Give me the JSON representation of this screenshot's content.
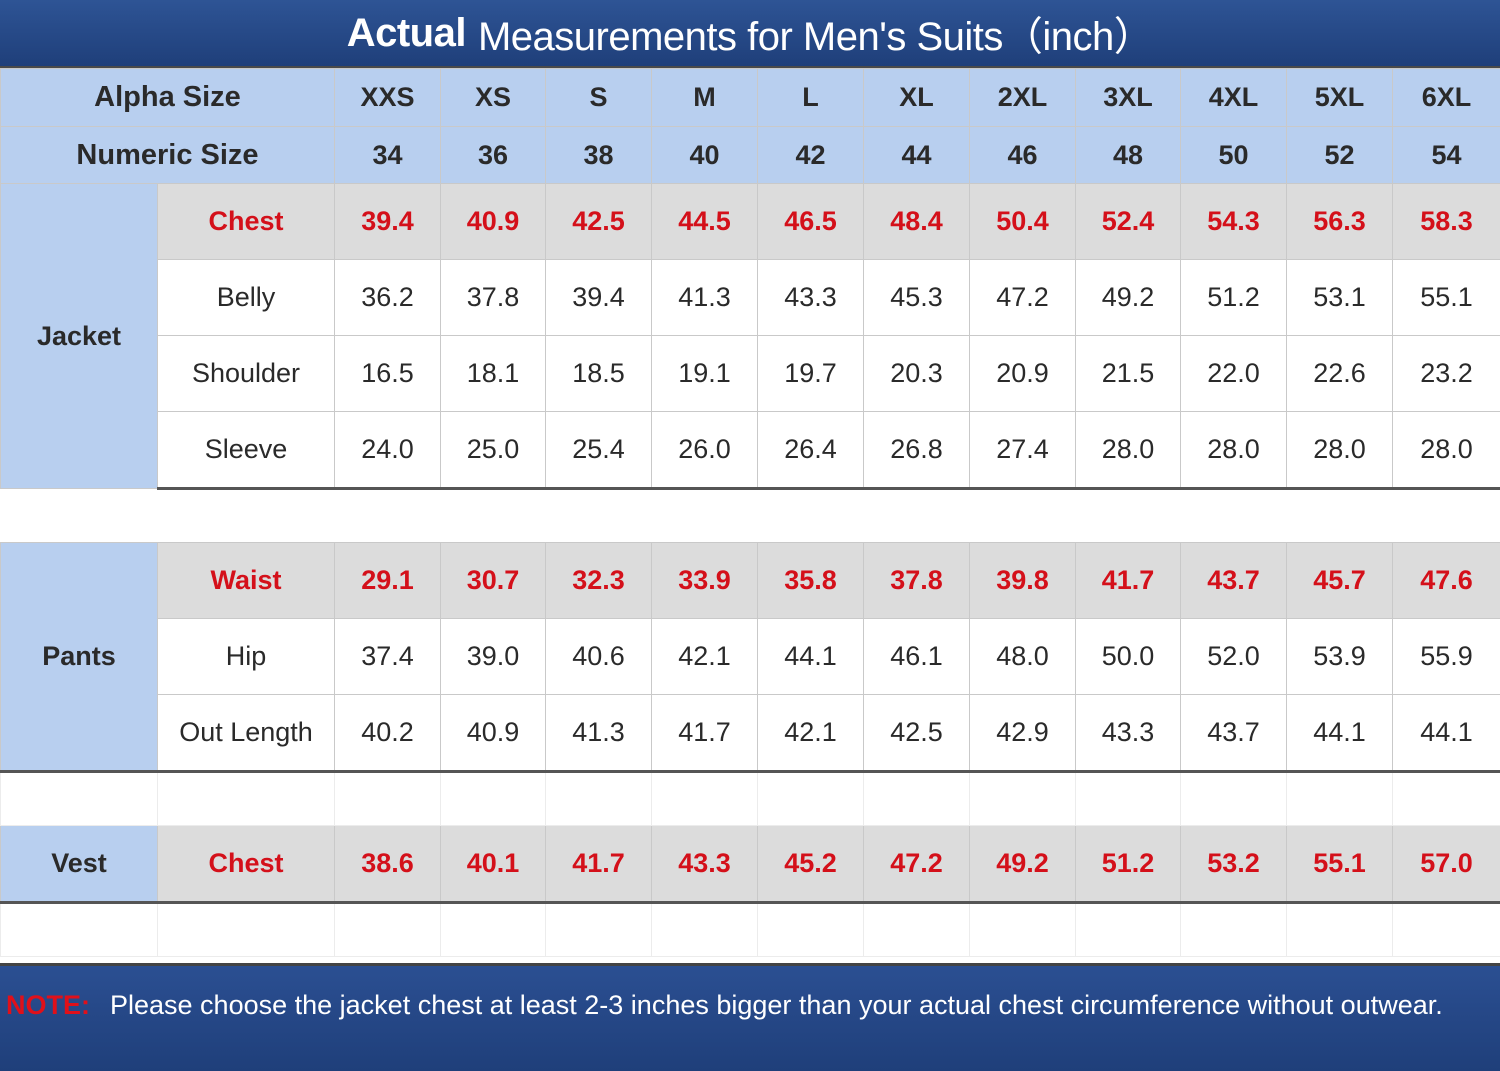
{
  "title": {
    "bold": "Actual",
    "rest": "Measurements for Men's Suits（inch）"
  },
  "header": {
    "alpha_label": "Alpha Size",
    "numeric_label": "Numeric Size",
    "alpha": [
      "XXS",
      "XS",
      "S",
      "M",
      "L",
      "XL",
      "2XL",
      "3XL",
      "4XL",
      "5XL",
      "6XL"
    ],
    "numeric": [
      "34",
      "36",
      "38",
      "40",
      "42",
      "44",
      "46",
      "48",
      "50",
      "52",
      "54"
    ]
  },
  "jacket": {
    "label": "Jacket",
    "rows": [
      {
        "label": "Chest",
        "values": [
          "39.4",
          "40.9",
          "42.5",
          "44.5",
          "46.5",
          "48.4",
          "50.4",
          "52.4",
          "54.3",
          "56.3",
          "58.3"
        ]
      },
      {
        "label": "Belly",
        "values": [
          "36.2",
          "37.8",
          "39.4",
          "41.3",
          "43.3",
          "45.3",
          "47.2",
          "49.2",
          "51.2",
          "53.1",
          "55.1"
        ]
      },
      {
        "label": "Shoulder",
        "values": [
          "16.5",
          "18.1",
          "18.5",
          "19.1",
          "19.7",
          "20.3",
          "20.9",
          "21.5",
          "22.0",
          "22.6",
          "23.2"
        ]
      },
      {
        "label": "Sleeve",
        "values": [
          "24.0",
          "25.0",
          "25.4",
          "26.0",
          "26.4",
          "26.8",
          "27.4",
          "28.0",
          "28.0",
          "28.0",
          "28.0"
        ]
      }
    ]
  },
  "pants": {
    "label": "Pants",
    "rows": [
      {
        "label": "Waist",
        "values": [
          "29.1",
          "30.7",
          "32.3",
          "33.9",
          "35.8",
          "37.8",
          "39.8",
          "41.7",
          "43.7",
          "45.7",
          "47.6"
        ]
      },
      {
        "label": "Hip",
        "values": [
          "37.4",
          "39.0",
          "40.6",
          "42.1",
          "44.1",
          "46.1",
          "48.0",
          "50.0",
          "52.0",
          "53.9",
          "55.9"
        ]
      },
      {
        "label": "Out Length",
        "values": [
          "40.2",
          "40.9",
          "41.3",
          "41.7",
          "42.1",
          "42.5",
          "42.9",
          "43.3",
          "43.7",
          "44.1",
          "44.1"
        ]
      }
    ]
  },
  "vest": {
    "label": "Vest",
    "rows": [
      {
        "label": "Chest",
        "values": [
          "38.6",
          "40.1",
          "41.7",
          "43.3",
          "45.2",
          "47.2",
          "49.2",
          "51.2",
          "53.2",
          "55.1",
          "57.0"
        ]
      }
    ]
  },
  "note": {
    "label": "NOTE:",
    "text": "Please choose the jacket chest at least 2-3 inches bigger than your actual chest circumference without outwear."
  },
  "colors": {
    "header_blue": "#b8cfef",
    "title_navy": "#2e5495",
    "highlight_red": "#d4101a",
    "highlight_gray": "#dcdcdc"
  }
}
